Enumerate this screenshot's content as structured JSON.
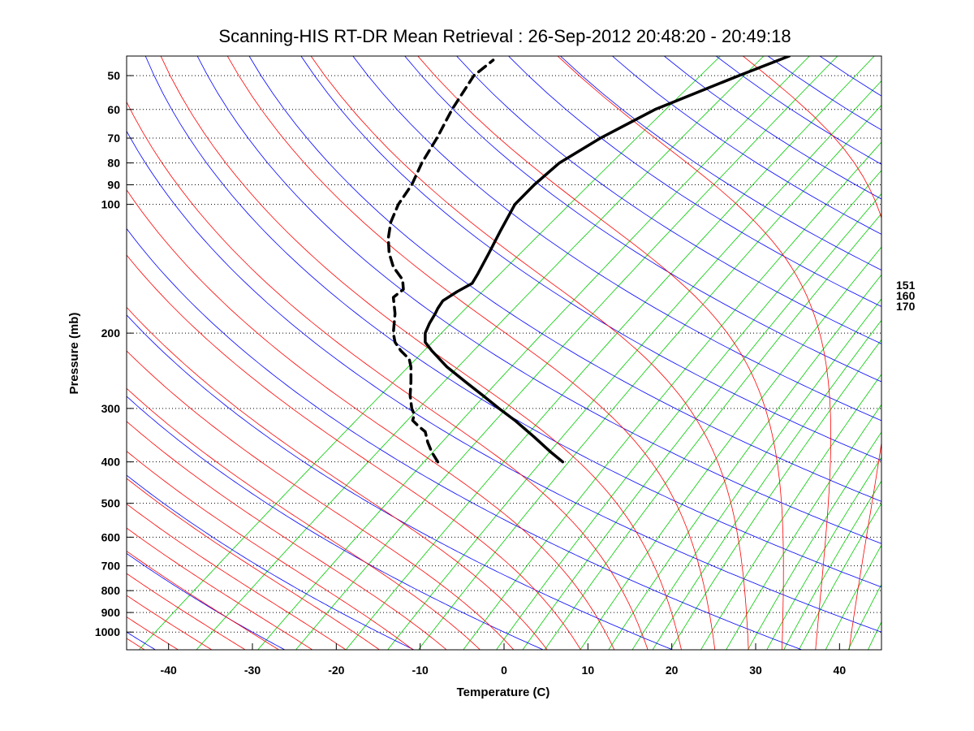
{
  "chart_data": {
    "type": "line",
    "subtype": "skew-T log-P sounding",
    "title": "Scanning-HIS RT-DR Mean Retrieval : 26-Sep-2012 20:48:20 - 20:49:18",
    "xlabel": "Temperature (C)",
    "ylabel": "Pressure (mb)",
    "xlim": [
      -45,
      45
    ],
    "ylim": [
      1100,
      45
    ],
    "x_ticks": [
      -40,
      -30,
      -20,
      -10,
      0,
      10,
      20,
      30,
      40
    ],
    "y_ticks": [
      50,
      60,
      70,
      80,
      90,
      100,
      200,
      300,
      400,
      500,
      600,
      700,
      800,
      900,
      1000
    ],
    "grid": "horizontal dotted at pressure ticks",
    "right_labels": [
      "151",
      "160",
      "170"
    ],
    "background_lines": [
      {
        "name": "dry adiabats",
        "color": "#0000ff"
      },
      {
        "name": "moist adiabats",
        "color": "#ff0000"
      },
      {
        "name": "mixing ratio lines",
        "color": "#00cc00"
      }
    ],
    "series": [
      {
        "name": "temperature",
        "style": "solid",
        "color": "#000000",
        "points": [
          [
            400,
            7.0
          ],
          [
            380,
            5.6
          ],
          [
            350,
            3.6
          ],
          [
            320,
            1.3
          ],
          [
            300,
            -0.6
          ],
          [
            280,
            -2.5
          ],
          [
            260,
            -4.6
          ],
          [
            240,
            -6.8
          ],
          [
            220,
            -8.6
          ],
          [
            210,
            -9.4
          ],
          [
            200,
            -9.4
          ],
          [
            190,
            -8.9
          ],
          [
            180,
            -8.2
          ],
          [
            175,
            -7.9
          ],
          [
            168,
            -7.3
          ],
          [
            160,
            -5.6
          ],
          [
            153,
            -3.8
          ],
          [
            145,
            -3.1
          ],
          [
            130,
            -1.8
          ],
          [
            115,
            -0.4
          ],
          [
            100,
            1.3
          ],
          [
            90,
            3.6
          ],
          [
            80,
            6.6
          ],
          [
            70,
            11.5
          ],
          [
            60,
            18.0
          ],
          [
            50,
            28.0
          ],
          [
            45,
            34.0
          ]
        ]
      },
      {
        "name": "dewpoint",
        "style": "dashed",
        "color": "#000000",
        "points": [
          [
            400,
            -7.9
          ],
          [
            380,
            -8.6
          ],
          [
            360,
            -9.1
          ],
          [
            340,
            -9.4
          ],
          [
            330,
            -10.2
          ],
          [
            320,
            -10.9
          ],
          [
            310,
            -10.7
          ],
          [
            300,
            -11.0
          ],
          [
            280,
            -11.2
          ],
          [
            260,
            -11.1
          ],
          [
            240,
            -11.1
          ],
          [
            230,
            -11.3
          ],
          [
            220,
            -12.3
          ],
          [
            210,
            -13.0
          ],
          [
            200,
            -13.2
          ],
          [
            180,
            -13.0
          ],
          [
            165,
            -13.2
          ],
          [
            158,
            -12.0
          ],
          [
            150,
            -12.1
          ],
          [
            140,
            -13.2
          ],
          [
            130,
            -13.7
          ],
          [
            120,
            -13.8
          ],
          [
            110,
            -13.5
          ],
          [
            100,
            -12.6
          ],
          [
            90,
            -11.0
          ],
          [
            80,
            -9.8
          ],
          [
            70,
            -8.0
          ],
          [
            60,
            -6.2
          ],
          [
            50,
            -3.6
          ],
          [
            46,
            -1.3
          ]
        ]
      }
    ]
  }
}
